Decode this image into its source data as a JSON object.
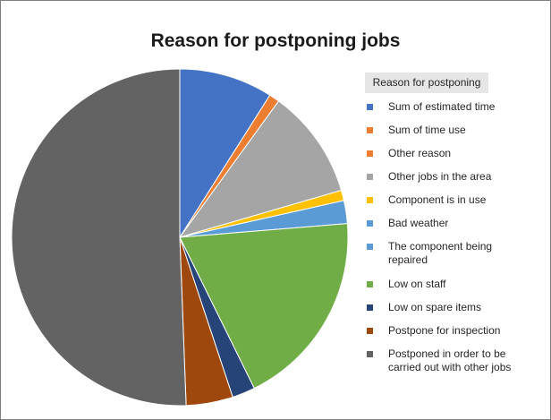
{
  "chart_data": {
    "type": "pie",
    "title": "Reason for postponing jobs",
    "legend_title": "Reason for postponing",
    "legend_position": "right",
    "slices": [
      {
        "label": "Sum of estimated time",
        "value": 9.0,
        "color": "#4472c4"
      },
      {
        "label": "Sum of time use",
        "value": 1.0,
        "color": "#ed7d31"
      },
      {
        "label": "Other reason",
        "value": 0,
        "color": "#ed7d31"
      },
      {
        "label": "Other jobs in the area",
        "value": 10.5,
        "color": "#a5a5a5"
      },
      {
        "label": "Component is in use",
        "value": 1.0,
        "color": "#ffc000"
      },
      {
        "label": "Bad weather",
        "value": 0,
        "color": "#5b9bd5"
      },
      {
        "label": "The component being repaired",
        "value": 2.2,
        "color": "#5b9bd5"
      },
      {
        "label": "Low on staff",
        "value": 19.0,
        "color": "#70ad47"
      },
      {
        "label": "Low on spare items",
        "value": 2.2,
        "color": "#264478"
      },
      {
        "label": "Postpone for inspection",
        "value": 4.5,
        "color": "#9e480e"
      },
      {
        "label": "Postponed in order to be carried out with other jobs",
        "value": 50.6,
        "color": "#636363"
      }
    ]
  }
}
